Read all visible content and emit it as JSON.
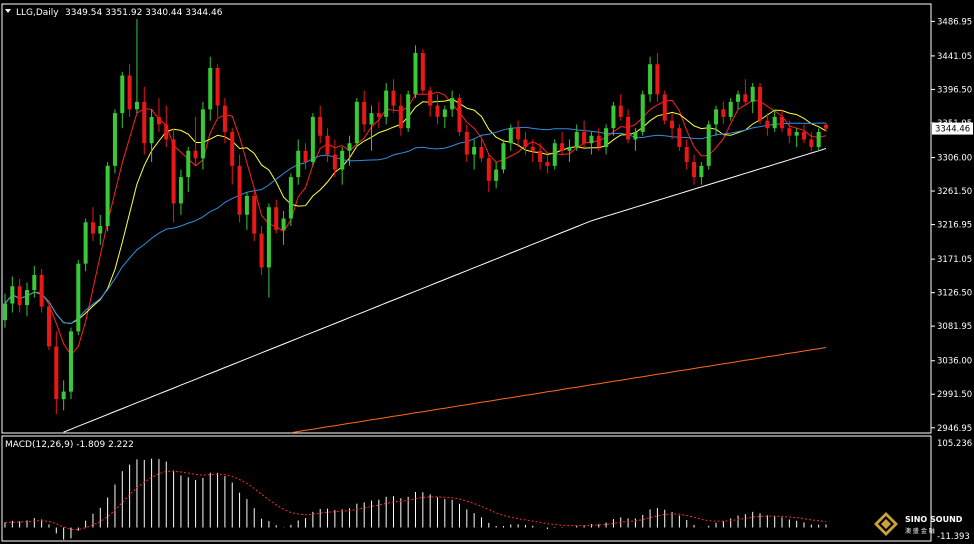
{
  "chart_data": {
    "type": "candlestick",
    "symbol": "LLG,Daily",
    "ohlc_header": "3349.54 3351.92 3340.44 3344.46",
    "last_price": "3344.46",
    "price_axis": {
      "range": [
        2940,
        3510
      ],
      "ticks": [
        "3486.95",
        "3441.05",
        "3396.50",
        "3351.95",
        "3306.00",
        "3261.50",
        "3216.95",
        "3171.05",
        "3126.50",
        "3081.95",
        "3036.00",
        "2991.50",
        "2946.95"
      ]
    },
    "candles": [
      [
        3090,
        3125,
        3080,
        3112
      ],
      [
        3112,
        3148,
        3100,
        3135
      ],
      [
        3135,
        3145,
        3100,
        3110
      ],
      [
        3110,
        3140,
        3095,
        3130
      ],
      [
        3130,
        3162,
        3120,
        3150
      ],
      [
        3150,
        3158,
        3100,
        3108
      ],
      [
        3108,
        3110,
        3050,
        3055
      ],
      [
        3055,
        3075,
        2965,
        2985
      ],
      [
        2985,
        3010,
        2970,
        2995
      ],
      [
        2995,
        3080,
        2985,
        3075
      ],
      [
        3075,
        3170,
        3070,
        3165
      ],
      [
        3165,
        3225,
        3155,
        3220
      ],
      [
        3220,
        3240,
        3195,
        3205
      ],
      [
        3205,
        3230,
        3190,
        3215
      ],
      [
        3215,
        3300,
        3208,
        3295
      ],
      [
        3295,
        3370,
        3285,
        3365
      ],
      [
        3365,
        3420,
        3345,
        3415
      ],
      [
        3415,
        3430,
        3360,
        3370
      ],
      [
        3370,
        3490,
        3365,
        3380
      ],
      [
        3380,
        3400,
        3310,
        3325
      ],
      [
        3325,
        3370,
        3300,
        3360
      ],
      [
        3360,
        3385,
        3340,
        3350
      ],
      [
        3350,
        3375,
        3320,
        3330
      ],
      [
        3330,
        3345,
        3220,
        3245
      ],
      [
        3245,
        3290,
        3230,
        3280
      ],
      [
        3280,
        3320,
        3260,
        3315
      ],
      [
        3315,
        3360,
        3295,
        3305
      ],
      [
        3305,
        3380,
        3290,
        3370
      ],
      [
        3370,
        3440,
        3355,
        3425
      ],
      [
        3425,
        3430,
        3360,
        3375
      ],
      [
        3375,
        3385,
        3325,
        3340
      ],
      [
        3340,
        3345,
        3270,
        3295
      ],
      [
        3295,
        3310,
        3220,
        3230
      ],
      [
        3230,
        3260,
        3210,
        3255
      ],
      [
        3255,
        3265,
        3195,
        3205
      ],
      [
        3205,
        3215,
        3150,
        3160
      ],
      [
        3160,
        3245,
        3120,
        3240
      ],
      [
        3240,
        3250,
        3205,
        3210
      ],
      [
        3210,
        3235,
        3190,
        3225
      ],
      [
        3225,
        3285,
        3215,
        3280
      ],
      [
        3280,
        3330,
        3270,
        3315
      ],
      [
        3315,
        3325,
        3290,
        3300
      ],
      [
        3300,
        3365,
        3295,
        3360
      ],
      [
        3360,
        3375,
        3325,
        3335
      ],
      [
        3335,
        3345,
        3300,
        3310
      ],
      [
        3310,
        3330,
        3280,
        3290
      ],
      [
        3290,
        3320,
        3270,
        3315
      ],
      [
        3315,
        3335,
        3295,
        3325
      ],
      [
        3325,
        3385,
        3320,
        3380
      ],
      [
        3380,
        3395,
        3340,
        3350
      ],
      [
        3350,
        3375,
        3315,
        3365
      ],
      [
        3365,
        3380,
        3345,
        3360
      ],
      [
        3360,
        3405,
        3350,
        3395
      ],
      [
        3395,
        3410,
        3365,
        3375
      ],
      [
        3375,
        3390,
        3335,
        3345
      ],
      [
        3345,
        3395,
        3340,
        3390
      ],
      [
        3390,
        3455,
        3385,
        3445
      ],
      [
        3445,
        3450,
        3390,
        3395
      ],
      [
        3395,
        3400,
        3360,
        3375
      ],
      [
        3375,
        3390,
        3350,
        3360
      ],
      [
        3360,
        3375,
        3345,
        3370
      ],
      [
        3370,
        3395,
        3360,
        3385
      ],
      [
        3385,
        3390,
        3335,
        3340
      ],
      [
        3340,
        3350,
        3300,
        3310
      ],
      [
        3310,
        3330,
        3290,
        3320
      ],
      [
        3320,
        3330,
        3300,
        3305
      ],
      [
        3305,
        3310,
        3260,
        3275
      ],
      [
        3275,
        3300,
        3265,
        3290
      ],
      [
        3290,
        3330,
        3285,
        3325
      ],
      [
        3325,
        3350,
        3315,
        3345
      ],
      [
        3345,
        3355,
        3320,
        3330
      ],
      [
        3330,
        3340,
        3310,
        3320
      ],
      [
        3320,
        3330,
        3300,
        3315
      ],
      [
        3315,
        3325,
        3290,
        3300
      ],
      [
        3300,
        3310,
        3285,
        3295
      ],
      [
        3295,
        3330,
        3290,
        3325
      ],
      [
        3325,
        3340,
        3310,
        3315
      ],
      [
        3315,
        3330,
        3300,
        3320
      ],
      [
        3320,
        3350,
        3315,
        3340
      ],
      [
        3340,
        3355,
        3320,
        3325
      ],
      [
        3325,
        3340,
        3310,
        3335
      ],
      [
        3335,
        3345,
        3315,
        3320
      ],
      [
        3320,
        3350,
        3310,
        3345
      ],
      [
        3345,
        3380,
        3335,
        3375
      ],
      [
        3375,
        3390,
        3355,
        3360
      ],
      [
        3360,
        3370,
        3325,
        3330
      ],
      [
        3330,
        3345,
        3315,
        3340
      ],
      [
        3340,
        3395,
        3335,
        3390
      ],
      [
        3390,
        3440,
        3380,
        3430
      ],
      [
        3430,
        3445,
        3380,
        3390
      ],
      [
        3390,
        3395,
        3350,
        3355
      ],
      [
        3355,
        3365,
        3330,
        3345
      ],
      [
        3345,
        3350,
        3315,
        3320
      ],
      [
        3320,
        3330,
        3290,
        3300
      ],
      [
        3300,
        3310,
        3270,
        3280
      ],
      [
        3280,
        3300,
        3270,
        3295
      ],
      [
        3295,
        3355,
        3290,
        3350
      ],
      [
        3350,
        3375,
        3335,
        3370
      ],
      [
        3370,
        3380,
        3350,
        3360
      ],
      [
        3360,
        3385,
        3355,
        3380
      ],
      [
        3380,
        3395,
        3370,
        3390
      ],
      [
        3390,
        3410,
        3375,
        3380
      ],
      [
        3380,
        3405,
        3365,
        3400
      ],
      [
        3400,
        3405,
        3350,
        3355
      ],
      [
        3355,
        3365,
        3335,
        3345
      ],
      [
        3345,
        3370,
        3340,
        3360
      ],
      [
        3360,
        3370,
        3340,
        3345
      ],
      [
        3345,
        3355,
        3325,
        3335
      ],
      [
        3335,
        3345,
        3320,
        3340
      ],
      [
        3340,
        3350,
        3325,
        3330
      ],
      [
        3330,
        3340,
        3315,
        3320
      ],
      [
        3320,
        3345,
        3315,
        3340
      ],
      [
        3349.54,
        3351.92,
        3340.44,
        3344.46
      ]
    ],
    "ma_colors": {
      "ma5": "#ff2020",
      "ma10": "#ffff40",
      "ma30": "#2f8fe0",
      "ma60": "#ffffff",
      "ma120": "#ff6a1a"
    },
    "macd": {
      "label": "MACD(12,26,9) -1.809 2.222",
      "axis_top": "105.236",
      "axis_bottom": "-11.393",
      "range": [
        -11.393,
        105.236
      ]
    },
    "colors": {
      "up": "#38c838",
      "down": "#e81818",
      "grid": "#ffffff",
      "signal": "#ff2a2a",
      "hist": "#ffffff"
    }
  },
  "logo": {
    "name": "SINO SOUND",
    "sub": "澳 盛 金 融"
  }
}
